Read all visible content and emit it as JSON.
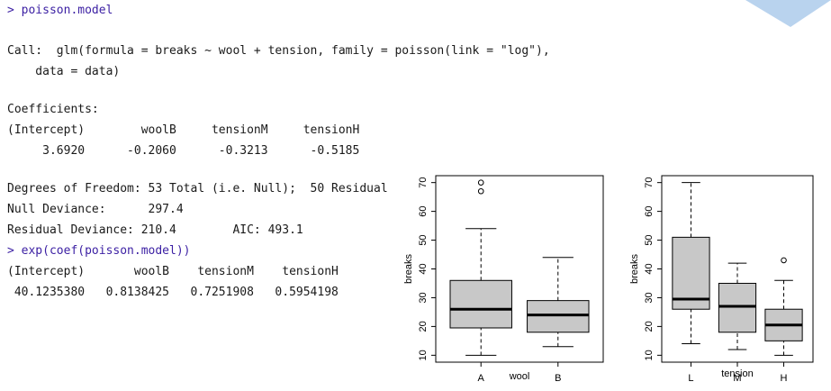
{
  "console": {
    "lines": [
      "> poisson.model",
      "Call:  glm(formula = breaks ~ wool + tension, family = poisson(link = \"log\"),",
      "    data = data)",
      "Coefficients:",
      "(Intercept)        woolB     tensionM     tensionH",
      "     3.6920      -0.2060      -0.3213      -0.5185",
      "Degrees of Freedom: 53 Total (i.e. Null);  50 Residual",
      "Null Deviance:      297.4",
      "Residual Deviance: 210.4        AIC: 493.1",
      "> exp(coef(poisson.model))",
      "(Intercept)       woolB    tensionM    tensionH",
      " 40.1235380   0.8138425   0.7251908   0.5954198"
    ],
    "prompt_color": "#3b1fa3",
    "text_color": "#1a1a1a"
  },
  "chart_data": [
    {
      "type": "boxplot",
      "xlabel": "wool",
      "ylabel": "breaks",
      "categories": [
        "A",
        "B"
      ],
      "boxes": [
        {
          "whisker_low": 10,
          "q1": 19.5,
          "median": 26,
          "q3": 36,
          "whisker_high": 54,
          "outliers": [
            67,
            70
          ]
        },
        {
          "whisker_low": 13,
          "q1": 18,
          "median": 24,
          "q3": 29,
          "whisker_high": 44,
          "outliers": []
        }
      ],
      "color": "#c8c8c8",
      "ylim": [
        7.6,
        72.4
      ],
      "yticks": [
        10,
        20,
        30,
        40,
        50,
        60,
        70
      ]
    },
    {
      "type": "boxplot",
      "xlabel": "tension",
      "ylabel": "breaks",
      "categories": [
        "L",
        "M",
        "H"
      ],
      "boxes": [
        {
          "whisker_low": 14,
          "q1": 26,
          "median": 29.5,
          "q3": 51,
          "whisker_high": 70,
          "outliers": []
        },
        {
          "whisker_low": 12,
          "q1": 18,
          "median": 27,
          "q3": 35,
          "whisker_high": 42,
          "outliers": []
        },
        {
          "whisker_low": 10,
          "q1": 15,
          "median": 20.5,
          "q3": 26,
          "whisker_high": 36,
          "outliers": [
            43
          ]
        }
      ],
      "color": "#c8c8c8",
      "ylim": [
        7.6,
        72.4
      ],
      "yticks": [
        10,
        20,
        30,
        40,
        50,
        60,
        70
      ]
    }
  ]
}
